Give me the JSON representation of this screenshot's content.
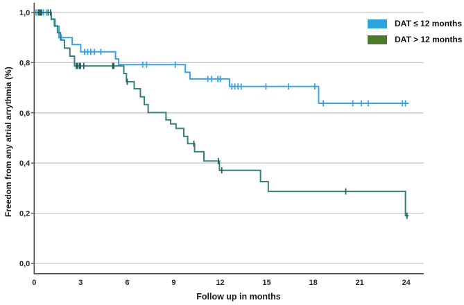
{
  "page": {
    "background": "#ffffff"
  },
  "chart_data": {
    "type": "line",
    "variant": "kaplan_meier_step",
    "title": "",
    "xlabel": "Follow up in months",
    "ylabel": "Freedom from any atrial arrythmia (%)",
    "x_range": [
      0,
      25
    ],
    "y_range": [
      0.0,
      1.0
    ],
    "x_ticks": [
      0,
      3,
      6,
      9,
      12,
      15,
      18,
      21,
      24
    ],
    "y_ticks": [
      {
        "v": 1.0,
        "label": "1,0"
      },
      {
        "v": 0.8,
        "label": "0,8"
      },
      {
        "v": 0.6,
        "label": "0,6"
      },
      {
        "v": 0.4,
        "label": "0,4"
      },
      {
        "v": 0.2,
        "label": "0,2"
      },
      {
        "v": 0.0,
        "label": "0,0"
      }
    ],
    "grid": "horizontal",
    "grid_color": "#c8c8c8",
    "axis_color": "#4d4d4d",
    "legend_position": "top-right",
    "series": [
      {
        "name": "DAT ≤ 12 months",
        "color": "#37a3e6",
        "legend_color": "#2ba6dc",
        "points": [
          [
            0,
            1
          ],
          [
            1.1,
            1
          ],
          [
            1.1,
            0.972
          ],
          [
            1.35,
            0.972
          ],
          [
            1.35,
            0.945
          ],
          [
            1.6,
            0.945
          ],
          [
            1.6,
            0.9
          ],
          [
            2.45,
            0.9
          ],
          [
            2.45,
            0.872
          ],
          [
            3,
            0.872
          ],
          [
            3,
            0.843
          ],
          [
            5.25,
            0.843
          ],
          [
            5.25,
            0.815
          ],
          [
            5.45,
            0.815
          ],
          [
            5.45,
            0.792
          ],
          [
            9.75,
            0.792
          ],
          [
            9.75,
            0.762
          ],
          [
            10.05,
            0.762
          ],
          [
            10.05,
            0.735
          ],
          [
            12.6,
            0.735
          ],
          [
            12.6,
            0.705
          ],
          [
            18.35,
            0.705
          ],
          [
            18.35,
            0.638
          ],
          [
            24.15,
            0.638
          ]
        ],
        "censors": [
          [
            0.12,
            1
          ],
          [
            0.6,
            1
          ],
          [
            0.78,
            1
          ],
          [
            1.75,
            0.9
          ],
          [
            3.25,
            0.843
          ],
          [
            3.45,
            0.843
          ],
          [
            3.65,
            0.843
          ],
          [
            3.88,
            0.843
          ],
          [
            4.3,
            0.843
          ],
          [
            7,
            0.792
          ],
          [
            7.25,
            0.792
          ],
          [
            9.1,
            0.792
          ],
          [
            11.2,
            0.735
          ],
          [
            11.45,
            0.735
          ],
          [
            11.85,
            0.735
          ],
          [
            12,
            0.735
          ],
          [
            12.75,
            0.705
          ],
          [
            12.95,
            0.705
          ],
          [
            13.15,
            0.705
          ],
          [
            13.35,
            0.705
          ],
          [
            14.95,
            0.705
          ],
          [
            16.4,
            0.705
          ],
          [
            18.1,
            0.705
          ],
          [
            18.65,
            0.638
          ],
          [
            20.55,
            0.638
          ],
          [
            21.1,
            0.638
          ],
          [
            21.55,
            0.638
          ],
          [
            23.75,
            0.638
          ],
          [
            23.95,
            0.638
          ]
        ]
      },
      {
        "name": "DAT > 12 months",
        "color": "#35807b",
        "censor_color": "#235f5d",
        "legend_color": "#4e7b2b",
        "points": [
          [
            0,
            1
          ],
          [
            1.1,
            1
          ],
          [
            1.1,
            0.974
          ],
          [
            1.3,
            0.974
          ],
          [
            1.3,
            0.947
          ],
          [
            1.5,
            0.947
          ],
          [
            1.5,
            0.919
          ],
          [
            1.7,
            0.919
          ],
          [
            1.7,
            0.89
          ],
          [
            1.95,
            0.89
          ],
          [
            1.95,
            0.858
          ],
          [
            2.3,
            0.858
          ],
          [
            2.3,
            0.826
          ],
          [
            2.6,
            0.826
          ],
          [
            2.6,
            0.787
          ],
          [
            5.78,
            0.787
          ],
          [
            5.78,
            0.757
          ],
          [
            5.95,
            0.757
          ],
          [
            5.95,
            0.724
          ],
          [
            6.45,
            0.724
          ],
          [
            6.45,
            0.696
          ],
          [
            6.85,
            0.696
          ],
          [
            6.85,
            0.664
          ],
          [
            7.1,
            0.664
          ],
          [
            7.1,
            0.633
          ],
          [
            7.35,
            0.633
          ],
          [
            7.35,
            0.601
          ],
          [
            8.5,
            0.601
          ],
          [
            8.5,
            0.572
          ],
          [
            8.8,
            0.572
          ],
          [
            8.8,
            0.556
          ],
          [
            9.15,
            0.556
          ],
          [
            9.15,
            0.538
          ],
          [
            9.65,
            0.538
          ],
          [
            9.65,
            0.506
          ],
          [
            9.9,
            0.506
          ],
          [
            9.9,
            0.477
          ],
          [
            10.35,
            0.477
          ],
          [
            10.35,
            0.445
          ],
          [
            10.95,
            0.445
          ],
          [
            10.95,
            0.408
          ],
          [
            11.95,
            0.408
          ],
          [
            11.95,
            0.371
          ],
          [
            14.6,
            0.371
          ],
          [
            14.6,
            0.326
          ],
          [
            15.1,
            0.326
          ],
          [
            15.1,
            0.287
          ],
          [
            23.95,
            0.287
          ],
          [
            23.95,
            0.19
          ],
          [
            24.15,
            0.19
          ]
        ],
        "censors": [
          [
            0.3,
            1,
            true
          ],
          [
            0.45,
            1,
            true
          ],
          [
            0.9,
            1
          ],
          [
            1.05,
            1
          ],
          [
            2.75,
            0.787,
            true
          ],
          [
            2.95,
            0.787,
            true
          ],
          [
            3.2,
            0.787
          ],
          [
            5.1,
            0.787,
            true
          ],
          [
            6,
            0.724
          ],
          [
            10.3,
            0.477
          ],
          [
            11.88,
            0.408
          ],
          [
            12.1,
            0.371
          ],
          [
            20.1,
            0.287
          ],
          [
            24.05,
            0.19
          ]
        ]
      }
    ]
  }
}
